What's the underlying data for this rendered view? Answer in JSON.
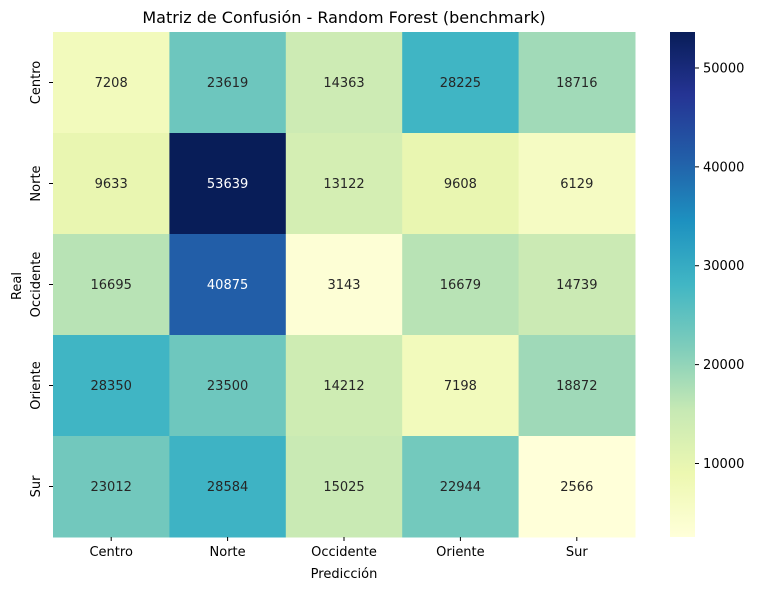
{
  "chart_data": {
    "type": "heatmap",
    "title": "Matriz de Confusión - Random Forest (benchmark)",
    "xlabel": "Predicción",
    "ylabel": "Real",
    "x_categories": [
      "Centro",
      "Norte",
      "Occidente",
      "Oriente",
      "Sur"
    ],
    "y_categories": [
      "Centro",
      "Norte",
      "Occidente",
      "Oriente",
      "Sur"
    ],
    "values": [
      [
        7208,
        23619,
        14363,
        28225,
        18716
      ],
      [
        9633,
        53639,
        13122,
        9608,
        6129
      ],
      [
        16695,
        40875,
        3143,
        16679,
        14739
      ],
      [
        28350,
        23500,
        14212,
        7198,
        18872
      ],
      [
        23012,
        28584,
        15025,
        22944,
        2566
      ]
    ],
    "colorbar": {
      "min": 2566,
      "max": 53639,
      "ticks": [
        10000,
        20000,
        30000,
        40000,
        50000
      ],
      "colormap": "YlGnBu"
    }
  }
}
